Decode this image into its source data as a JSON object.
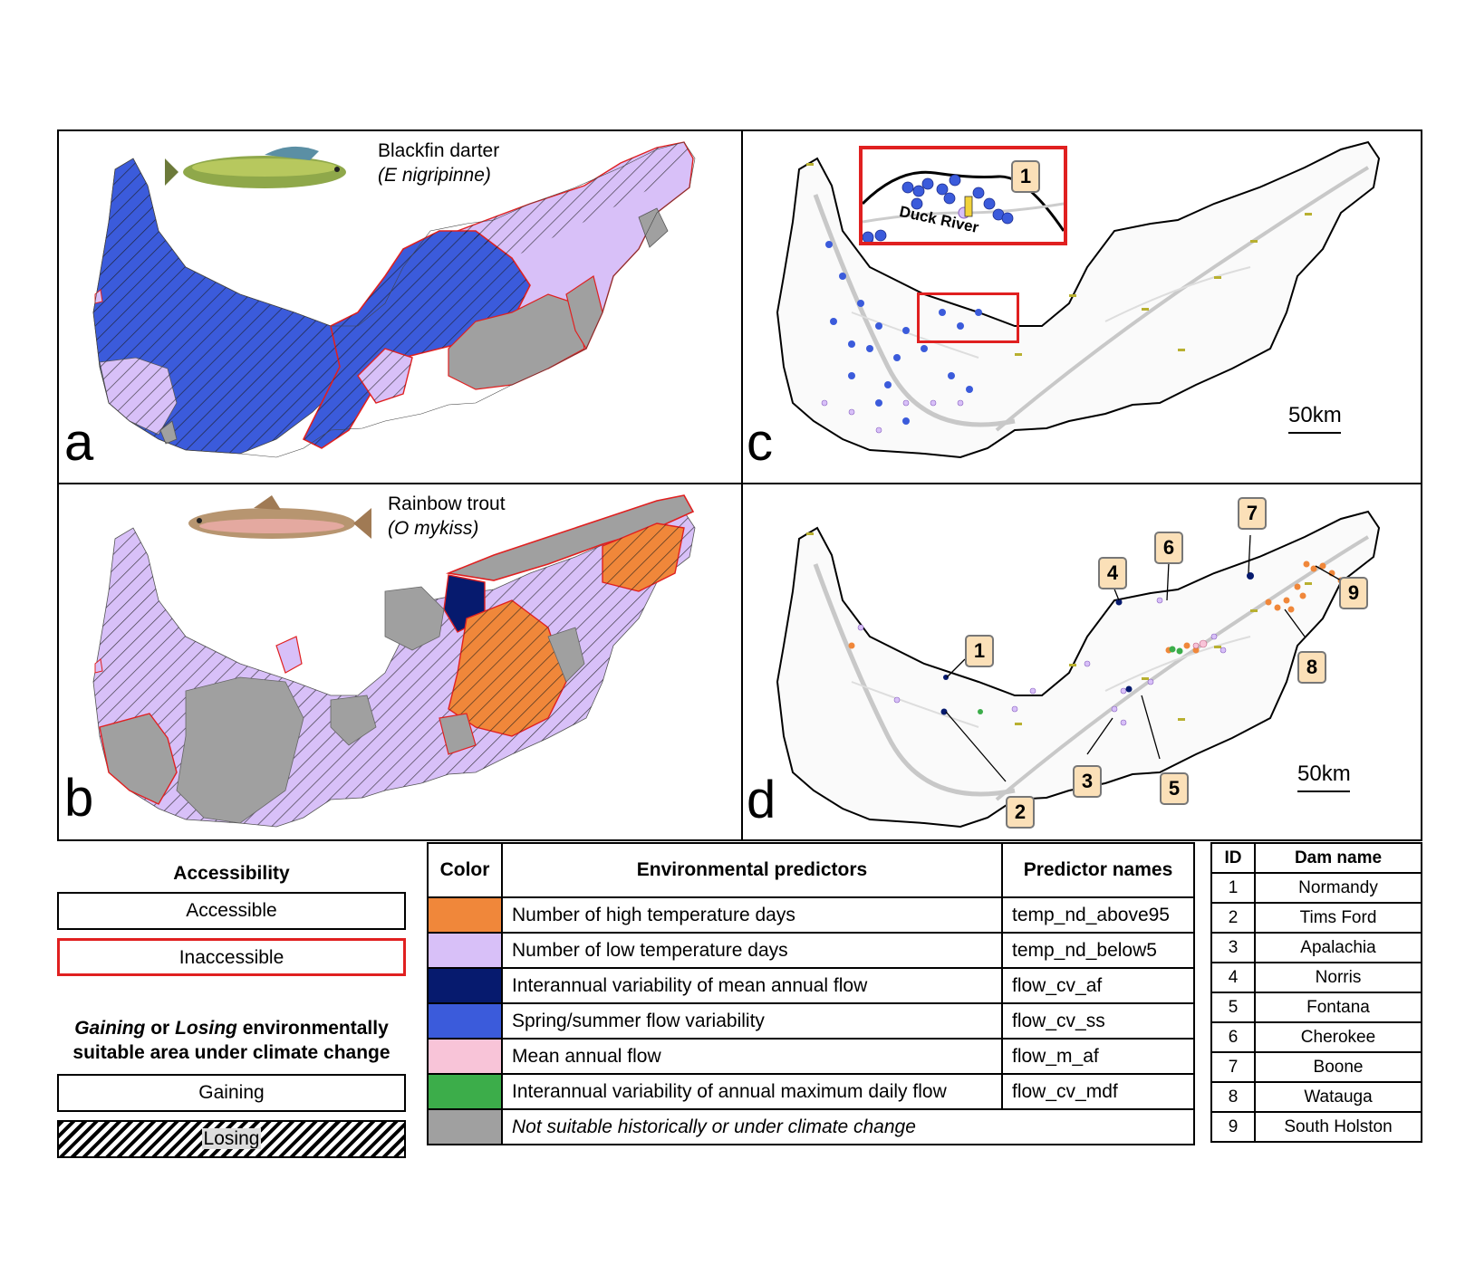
{
  "panels": {
    "a": {
      "label": "a",
      "species_common": "Blackfin darter",
      "species_scientific": "(E nigripinne)"
    },
    "b": {
      "label": "b",
      "species_common": "Rainbow trout",
      "species_scientific": "(O mykiss)"
    },
    "c": {
      "label": "c",
      "scale": "50km",
      "inset_label": "Duck River",
      "callouts": [
        "1"
      ]
    },
    "d": {
      "label": "d",
      "scale": "50km",
      "callouts": [
        "1",
        "2",
        "3",
        "4",
        "5",
        "6",
        "7",
        "8",
        "9"
      ]
    }
  },
  "legend": {
    "accessibility_title": "Accessibility",
    "accessible": "Accessible",
    "inaccessible": "Inaccessible",
    "change_title_1_bold_italic_a": "Gaining",
    "change_title_1_mid": " or ",
    "change_title_1_bold_italic_b": "Losing",
    "change_title_1_rest": " environmentally",
    "change_title_2": "suitable area under climate change",
    "gaining": "Gaining",
    "losing": "Losing"
  },
  "predictor_table": {
    "headers": [
      "Color",
      "Environmental predictors",
      "Predictor names"
    ],
    "rows": [
      {
        "color": "#f0873a",
        "predictor": "Number of high temperature days",
        "name": "temp_nd_above95"
      },
      {
        "color": "#d8c0f8",
        "predictor": "Number of low temperature days",
        "name": "temp_nd_below5"
      },
      {
        "color": "#061a6e",
        "predictor": "Interannual variability of mean annual flow",
        "name": "flow_cv_af"
      },
      {
        "color": "#3b5bdb",
        "predictor": "Spring/summer flow variability",
        "name": "flow_cv_ss"
      },
      {
        "color": "#f8c4d8",
        "predictor": "Mean annual flow",
        "name": "flow_m_af"
      },
      {
        "color": "#3cad4a",
        "predictor": "Interannual variability of annual maximum daily flow",
        "name": "flow_cv_mdf"
      },
      {
        "color": "#a0a0a0",
        "predictor": "Not suitable historically or under climate change",
        "name": ""
      }
    ]
  },
  "dam_table": {
    "headers": [
      "ID",
      "Dam name"
    ],
    "rows": [
      {
        "id": "1",
        "name": "Normandy"
      },
      {
        "id": "2",
        "name": "Tims Ford"
      },
      {
        "id": "3",
        "name": "Apalachia"
      },
      {
        "id": "4",
        "name": "Norris"
      },
      {
        "id": "5",
        "name": "Fontana"
      },
      {
        "id": "6",
        "name": "Cherokee"
      },
      {
        "id": "7",
        "name": "Boone"
      },
      {
        "id": "8",
        "name": "Watauga"
      },
      {
        "id": "9",
        "name": "South Holston"
      }
    ]
  },
  "colors": {
    "blue": "#3b5bdb",
    "lavender": "#d8c0f8",
    "orange": "#f0873a",
    "navy": "#061a6e",
    "grey": "#a0a0a0",
    "pink": "#f8c4d8",
    "green": "#3cad4a",
    "inaccessible_border": "#e02020"
  }
}
